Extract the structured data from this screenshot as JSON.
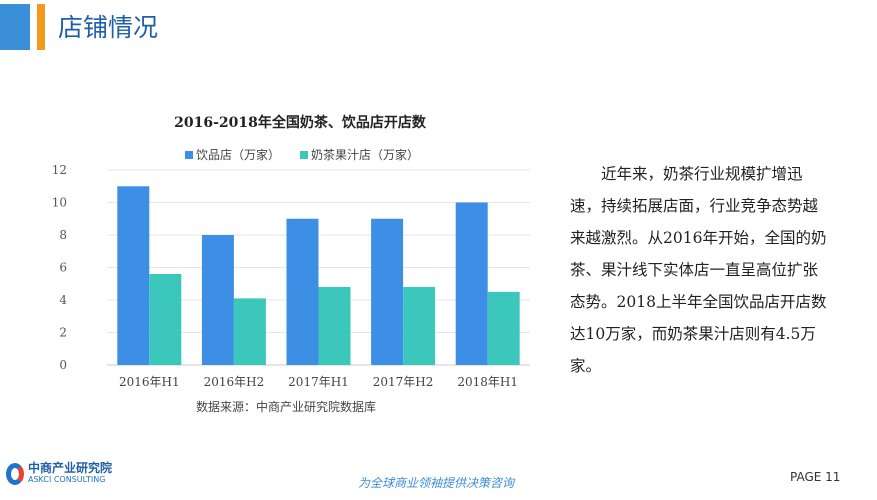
{
  "header": {
    "title": "店铺情况"
  },
  "chart_data": {
    "type": "bar",
    "title": "2016-2018年全国奶茶、饮品店开店数",
    "categories": [
      "2016年H1",
      "2016年H2",
      "2017年H1",
      "2017年H2",
      "2018年H1"
    ],
    "series": [
      {
        "name": "饮品店（万家）",
        "values": [
          11,
          8,
          9,
          9,
          10
        ],
        "color": "#3d8fe6"
      },
      {
        "name": "奶茶果汁店（万家）",
        "values": [
          5.6,
          4.1,
          4.8,
          4.8,
          4.5
        ],
        "color": "#3cc7bd"
      }
    ],
    "ylim": [
      0,
      12
    ],
    "yticks": [
      0,
      2,
      4,
      6,
      8,
      10,
      12
    ],
    "grid": true,
    "legend": "top",
    "source": "数据来源：中商产业研究院数据库"
  },
  "paragraph": "近年来，奶茶行业规模扩增迅速，持续拓展店面，行业竞争态势越来越激烈。从2016年开始，全国的奶茶、果汁线下实体店一直呈高位扩张态势。2018上半年全国饮品店开店数达10万家，而奶茶果汁店则有4.5万家。",
  "footer": {
    "logo_cn": "中商产业研究院",
    "logo_en": "ASKCI CONSULTING",
    "slogan": "为全球商业领袖提供决策咨询",
    "page": "PAGE 11"
  }
}
